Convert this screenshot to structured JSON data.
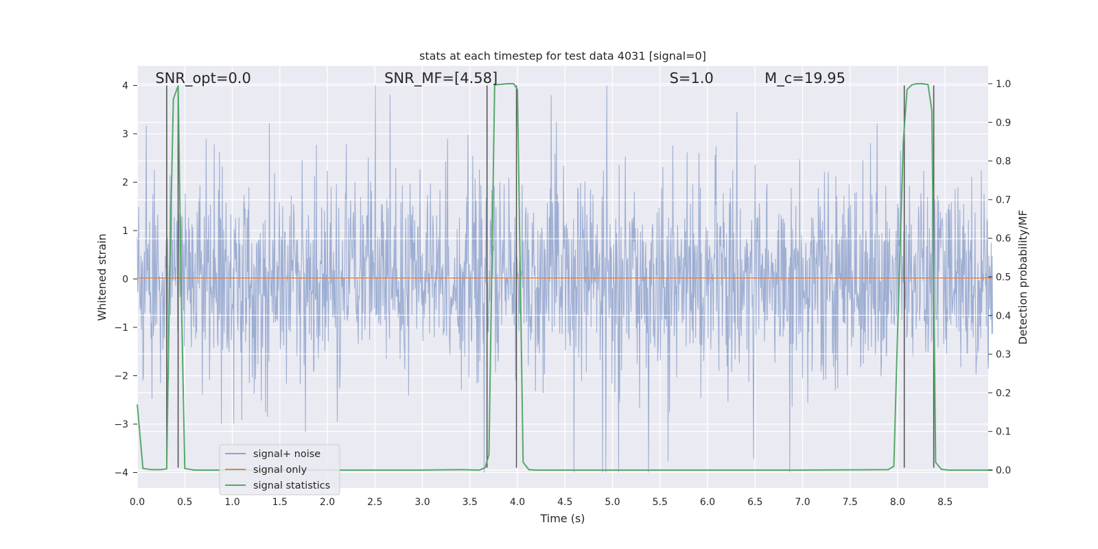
{
  "chart_data": {
    "type": "line",
    "title": "stats at each timestep for test data 4031 [signal=0]",
    "xlabel": "Time (s)",
    "ylabel": "Whitened strain",
    "y2label": "Detection probability/MF",
    "xlim": [
      0.0,
      9.0
    ],
    "ylim": [
      -4.4,
      4.4
    ],
    "y2lim": [
      -0.05,
      1.04
    ],
    "x_ticks": [
      0.0,
      0.5,
      1.0,
      1.5,
      2.0,
      2.5,
      3.0,
      3.5,
      4.0,
      4.5,
      5.0,
      5.5,
      6.0,
      6.5,
      7.0,
      7.5,
      8.0,
      8.5
    ],
    "x_tick_labels": [
      "0.0",
      "0.5",
      "1.0",
      "1.5",
      "2.0",
      "2.5",
      "3.0",
      "3.5",
      "4.0",
      "4.5",
      "5.0",
      "5.5",
      "6.0",
      "6.5",
      "7.0",
      "7.5",
      "8.0",
      "8.5"
    ],
    "y_ticks": [
      -4,
      -3,
      -2,
      -1,
      0,
      1,
      2,
      3,
      4
    ],
    "y_tick_labels": [
      "−4",
      "−3",
      "−2",
      "−1",
      "0",
      "1",
      "2",
      "3",
      "4"
    ],
    "y2_ticks": [
      0.0,
      0.1,
      0.2,
      0.3,
      0.4,
      0.5,
      0.6,
      0.7,
      0.8,
      0.9,
      1.0
    ],
    "y2_tick_labels": [
      "0.0",
      "0.1",
      "0.2",
      "0.3",
      "0.4",
      "0.5",
      "0.6",
      "0.7",
      "0.8",
      "0.9",
      "1.0"
    ],
    "grid": true,
    "legend_position": "bottom-left",
    "legend": [
      "signal+ noise",
      "signal only",
      "signal statistics"
    ],
    "noise_series": {
      "name": "signal+ noise",
      "color": "#8fa3cc",
      "sample_step_s": 0.005,
      "typical_amplitude": 1.5,
      "peak_max": 4.0,
      "peak_min": -4.0
    },
    "signal_only": {
      "name": "signal only",
      "color": "#dd8452",
      "x": [
        0.0,
        9.0
      ],
      "y": [
        0.02,
        0.02
      ]
    },
    "signal_statistics": {
      "name": "signal statistics",
      "color": "#55a868",
      "x": [
        0.0,
        0.06,
        0.15,
        0.25,
        0.31,
        0.34,
        0.38,
        0.43,
        0.46,
        0.5,
        0.6,
        1.0,
        2.0,
        3.0,
        3.4,
        3.6,
        3.66,
        3.7,
        3.76,
        3.9,
        3.96,
        4.0,
        4.06,
        4.12,
        4.2,
        5.0,
        6.0,
        7.0,
        7.9,
        7.96,
        8.0,
        8.06,
        8.1,
        8.15,
        8.2,
        8.26,
        8.32,
        8.36,
        8.4,
        8.46,
        8.54,
        9.0
      ],
      "y": [
        0.17,
        0.004,
        0.001,
        0.001,
        0.003,
        0.49,
        0.96,
        0.995,
        0.5,
        0.004,
        0.0,
        0.0,
        0.0,
        0.0,
        0.001,
        0.0,
        0.006,
        0.04,
        0.997,
        1.0,
        1.0,
        0.985,
        0.02,
        0.001,
        0.0,
        0.0,
        0.0,
        0.0,
        0.001,
        0.01,
        0.36,
        0.85,
        0.985,
        0.997,
        1.0,
        1.0,
        0.998,
        0.93,
        0.02,
        0.002,
        0.0,
        0.0
      ]
    },
    "vertical_lines": {
      "color": "#555555",
      "x": [
        0.31,
        0.43,
        3.68,
        3.99,
        8.07,
        8.38
      ],
      "y_range": [
        -3.9,
        4.0
      ]
    },
    "annotations": [
      {
        "text": "SNR_opt=0.0",
        "x": 0.19,
        "y": 4.05
      },
      {
        "text": "SNR_MF=[4.58]",
        "x": 2.6,
        "y": 4.05
      },
      {
        "text": "S=1.0",
        "x": 5.6,
        "y": 4.05
      },
      {
        "text": "M_c=19.95",
        "x": 6.6,
        "y": 4.05
      }
    ]
  }
}
